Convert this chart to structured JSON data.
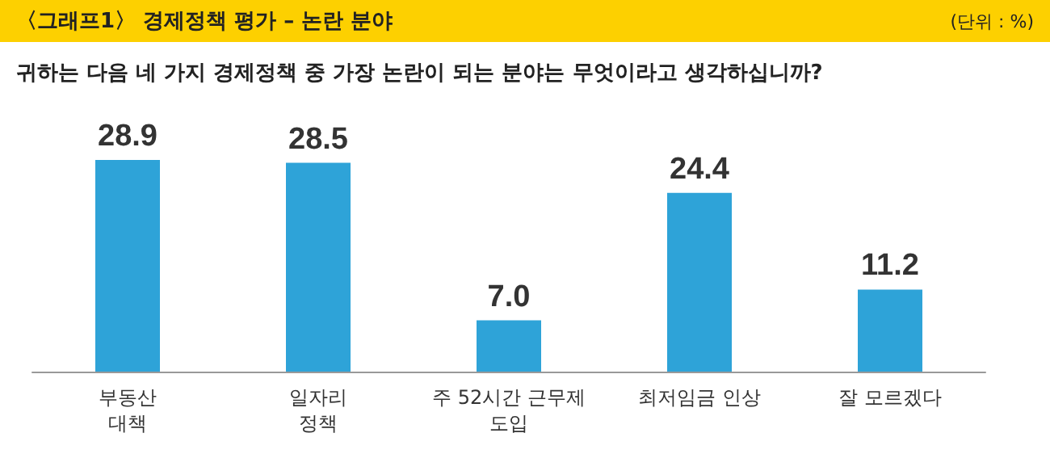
{
  "chart_data": {
    "type": "bar",
    "title": "〈그래프1〉 경제정책 평가 – 논란 분야",
    "subtitle": "귀하는 다음 네 가지 경제정책 중 가장 논란이 되는 분야는 무엇이라고 생각하십니까?",
    "annotations": [
      "(단위 : %)"
    ],
    "categories": [
      "부동산\n대책",
      "일자리\n정책",
      "주 52시간 근무제\n도입",
      "최저임금 인상",
      "잘 모르겠다"
    ],
    "values": [
      28.9,
      28.5,
      7.0,
      24.4,
      11.2
    ],
    "value_labels": [
      "28.9",
      "28.5",
      "7.0",
      "24.4",
      "11.2"
    ],
    "color": "#2ea3d8",
    "grid": false
  }
}
